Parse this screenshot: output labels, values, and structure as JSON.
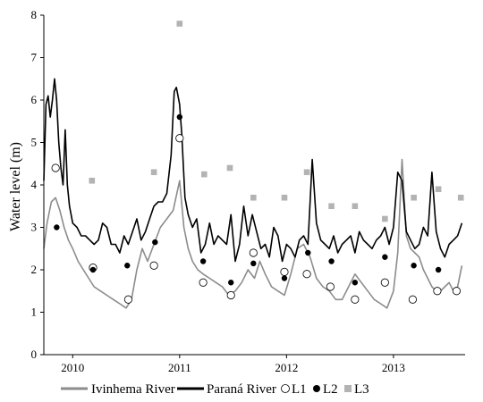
{
  "chart_data": {
    "type": "line",
    "title": "",
    "xlabel": "",
    "ylabel": "Water level (m)",
    "ylim": [
      0,
      8
    ],
    "yticks": [
      "0",
      "1",
      "2",
      "3",
      "4",
      "5",
      "6",
      "7",
      "8"
    ],
    "xlim": [
      2009.73,
      2013.67
    ],
    "xtick_labels": [
      "2010",
      "2011",
      "2012",
      "2013"
    ],
    "xtick_positions": [
      2010.0,
      2011.0,
      2012.0,
      2013.0
    ],
    "grid": false,
    "legend_position": "bottom",
    "colors": {
      "ivinhema": "#8c8c8c",
      "parana": "#000000",
      "L3": "#b3b3b3"
    },
    "series": [
      {
        "name": "Ivinhema River",
        "type": "line",
        "x": [
          2009.73,
          2009.76,
          2009.8,
          2009.84,
          2009.88,
          2009.92,
          2009.96,
          2010.0,
          2010.05,
          2010.1,
          2010.15,
          2010.2,
          2010.26,
          2010.32,
          2010.38,
          2010.44,
          2010.5,
          2010.55,
          2010.6,
          2010.65,
          2010.7,
          2010.76,
          2010.82,
          2010.88,
          2010.94,
          2011.0,
          2011.04,
          2011.08,
          2011.12,
          2011.17,
          2011.22,
          2011.28,
          2011.34,
          2011.4,
          2011.46,
          2011.52,
          2011.58,
          2011.64,
          2011.7,
          2011.75,
          2011.8,
          2011.86,
          2011.92,
          2011.98,
          2012.04,
          2012.1,
          2012.16,
          2012.22,
          2012.28,
          2012.34,
          2012.4,
          2012.46,
          2012.52,
          2012.58,
          2012.64,
          2012.7,
          2012.76,
          2012.82,
          2012.88,
          2012.94,
          2013.0,
          2013.04,
          2013.08,
          2013.12,
          2013.16,
          2013.2,
          2013.24,
          2013.28,
          2013.32,
          2013.36,
          2013.4,
          2013.44,
          2013.48,
          2013.52,
          2013.56,
          2013.6,
          2013.64
        ],
        "y": [
          2.5,
          3.1,
          3.6,
          3.7,
          3.4,
          3.0,
          2.7,
          2.5,
          2.2,
          2.0,
          1.8,
          1.6,
          1.5,
          1.4,
          1.3,
          1.2,
          1.1,
          1.3,
          2.0,
          2.5,
          2.2,
          2.6,
          3.0,
          3.2,
          3.4,
          4.1,
          3.0,
          2.5,
          2.2,
          2.0,
          1.9,
          1.8,
          1.7,
          1.6,
          1.4,
          1.5,
          1.7,
          2.0,
          1.8,
          2.2,
          1.9,
          1.6,
          1.5,
          1.4,
          1.9,
          2.5,
          2.6,
          2.3,
          1.8,
          1.6,
          1.5,
          1.3,
          1.3,
          1.6,
          1.9,
          1.7,
          1.5,
          1.3,
          1.2,
          1.1,
          1.5,
          2.4,
          4.6,
          2.8,
          2.5,
          2.4,
          2.3,
          2.0,
          1.8,
          1.6,
          1.5,
          1.5,
          1.6,
          1.7,
          1.5,
          1.6,
          2.1
        ]
      },
      {
        "name": "Paraná River",
        "type": "line",
        "x": [
          2009.73,
          2009.75,
          2009.77,
          2009.79,
          2009.81,
          2009.83,
          2009.85,
          2009.87,
          2009.89,
          2009.91,
          2009.93,
          2009.95,
          2009.97,
          2010.0,
          2010.04,
          2010.08,
          2010.12,
          2010.16,
          2010.2,
          2010.24,
          2010.28,
          2010.32,
          2010.36,
          2010.4,
          2010.44,
          2010.48,
          2010.52,
          2010.56,
          2010.6,
          2010.64,
          2010.68,
          2010.72,
          2010.76,
          2010.8,
          2010.84,
          2010.88,
          2010.92,
          2010.95,
          2010.97,
          2011.0,
          2011.02,
          2011.05,
          2011.08,
          2011.12,
          2011.16,
          2011.2,
          2011.24,
          2011.28,
          2011.32,
          2011.36,
          2011.4,
          2011.44,
          2011.48,
          2011.52,
          2011.56,
          2011.6,
          2011.64,
          2011.68,
          2011.72,
          2011.76,
          2011.8,
          2011.84,
          2011.88,
          2011.92,
          2011.96,
          2012.0,
          2012.04,
          2012.08,
          2012.12,
          2012.16,
          2012.2,
          2012.24,
          2012.28,
          2012.32,
          2012.36,
          2012.4,
          2012.44,
          2012.48,
          2012.52,
          2012.56,
          2012.6,
          2012.64,
          2012.68,
          2012.72,
          2012.76,
          2012.8,
          2012.84,
          2012.88,
          2012.92,
          2012.96,
          2013.0,
          2013.04,
          2013.08,
          2013.12,
          2013.16,
          2013.2,
          2013.24,
          2013.28,
          2013.32,
          2013.36,
          2013.4,
          2013.44,
          2013.48,
          2013.52,
          2013.56,
          2013.6,
          2013.64
        ],
        "y": [
          4.1,
          5.9,
          6.1,
          5.6,
          6.0,
          6.5,
          6.0,
          5.0,
          4.4,
          4.0,
          5.3,
          4.0,
          3.5,
          3.1,
          3.0,
          2.8,
          2.8,
          2.7,
          2.6,
          2.7,
          3.1,
          3.0,
          2.6,
          2.6,
          2.4,
          2.8,
          2.6,
          2.9,
          3.2,
          2.7,
          2.9,
          3.2,
          3.5,
          3.6,
          3.6,
          3.8,
          4.7,
          6.2,
          6.3,
          5.9,
          5.2,
          3.7,
          3.3,
          3.0,
          3.2,
          2.4,
          2.6,
          3.1,
          2.6,
          2.8,
          2.7,
          2.6,
          3.3,
          2.2,
          2.6,
          3.5,
          2.8,
          3.3,
          2.9,
          2.5,
          2.6,
          2.3,
          3.0,
          2.8,
          2.2,
          2.6,
          2.5,
          2.3,
          2.7,
          2.8,
          2.6,
          4.6,
          3.1,
          2.7,
          2.6,
          2.5,
          2.8,
          2.4,
          2.6,
          2.7,
          2.8,
          2.4,
          2.9,
          2.7,
          2.6,
          2.5,
          2.7,
          2.8,
          3.0,
          2.6,
          3.0,
          4.3,
          4.1,
          2.9,
          2.7,
          2.5,
          2.6,
          3.0,
          2.8,
          4.3,
          2.9,
          2.5,
          2.3,
          2.6,
          2.7,
          2.8,
          3.1
        ]
      },
      {
        "name": "L1",
        "type": "scatter",
        "marker": "open-circle",
        "x": [
          2009.84,
          2010.19,
          2010.52,
          2010.76,
          2011.0,
          2011.22,
          2011.48,
          2011.69,
          2011.98,
          2012.19,
          2012.41,
          2012.64,
          2012.92,
          2013.18,
          2013.41,
          2013.59
        ],
        "y": [
          4.4,
          2.05,
          1.3,
          2.1,
          5.1,
          1.7,
          1.4,
          2.4,
          1.95,
          1.9,
          1.6,
          1.3,
          1.7,
          1.3,
          1.5,
          1.5
        ]
      },
      {
        "name": "L2",
        "type": "scatter",
        "marker": "filled-circle",
        "x": [
          2009.85,
          2010.19,
          2010.51,
          2010.77,
          2011.0,
          2011.22,
          2011.48,
          2011.69,
          2011.98,
          2012.2,
          2012.42,
          2012.64,
          2012.92,
          2013.19,
          2013.42
        ],
        "y": [
          3.0,
          2.0,
          2.1,
          2.65,
          5.6,
          2.2,
          1.7,
          2.15,
          1.8,
          2.4,
          2.2,
          1.7,
          2.3,
          2.1,
          2.0
        ]
      },
      {
        "name": "L3",
        "type": "scatter",
        "marker": "square",
        "x": [
          2010.18,
          2010.76,
          2011.0,
          2011.23,
          2011.47,
          2011.69,
          2011.98,
          2012.19,
          2012.42,
          2012.64,
          2012.92,
          2013.19,
          2013.42,
          2013.63
        ],
        "y": [
          4.1,
          4.3,
          7.8,
          4.25,
          4.4,
          3.7,
          3.7,
          4.3,
          3.5,
          3.5,
          3.2,
          3.7,
          3.9,
          3.7
        ]
      }
    ]
  }
}
